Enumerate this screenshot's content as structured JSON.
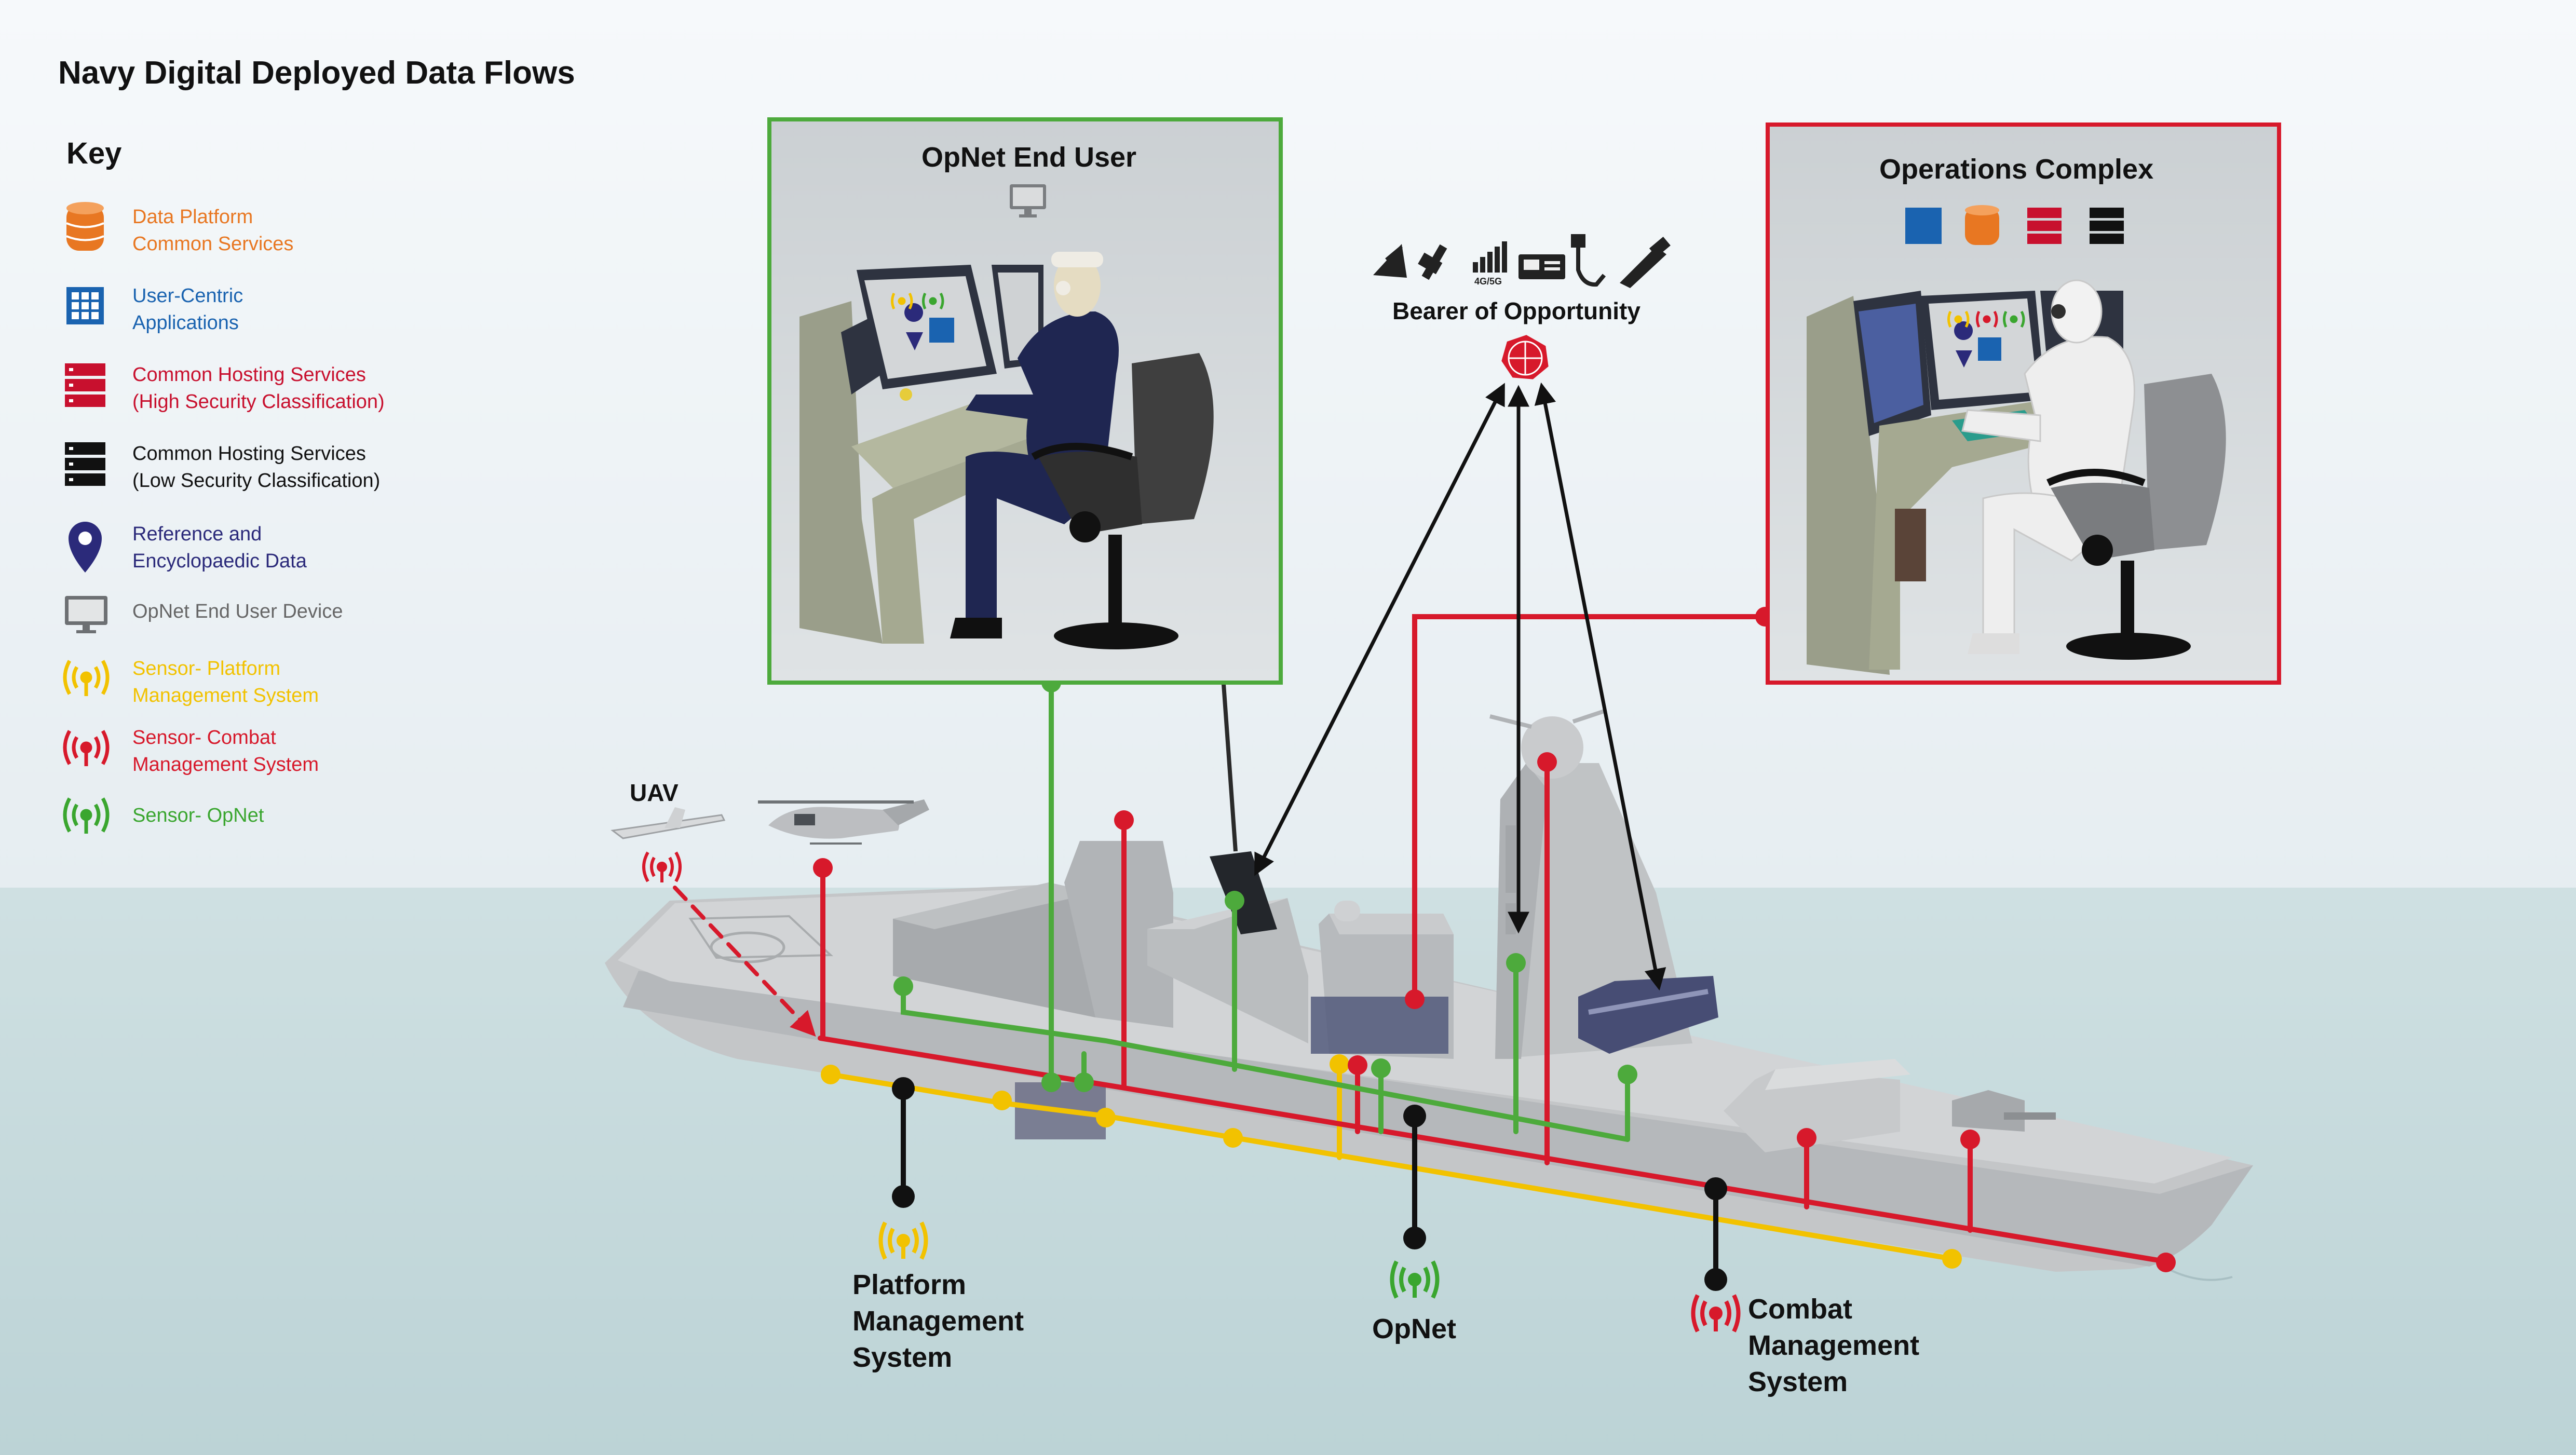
{
  "title": "Navy Digital Deployed Data Flows",
  "key": {
    "heading": "Key",
    "items": [
      {
        "icon": "database-icon",
        "line1": "Data Platform",
        "line2": "Common Services",
        "color": "#e87722"
      },
      {
        "icon": "app-grid-icon",
        "line1": "User-Centric",
        "line2": "Applications",
        "color": "#1a63b0"
      },
      {
        "icon": "server-stack-red-icon",
        "line1": "Common Hosting Services",
        "line2": "(High Security Classification)",
        "color": "#c8102e"
      },
      {
        "icon": "server-stack-black-icon",
        "line1": "Common Hosting Services",
        "line2": "(Low Security Classification)",
        "color": "#111111"
      },
      {
        "icon": "location-pin-icon",
        "line1": "Reference and",
        "line2": "Encyclopaedic Data",
        "color": "#2b2a7a"
      },
      {
        "icon": "monitor-icon",
        "line1": "OpNet End User Device",
        "line2": "",
        "color": "#666666"
      },
      {
        "icon": "sensor-yellow-icon",
        "line1": "Sensor- Platform",
        "line2": "Management System",
        "color": "#f2c200"
      },
      {
        "icon": "sensor-red-icon",
        "line1": "Sensor- Combat",
        "line2": "Management System",
        "color": "#d7192b"
      },
      {
        "icon": "sensor-green-icon",
        "line1": "Sensor- OpNet",
        "line2": "",
        "color": "#3aa62f"
      }
    ]
  },
  "panels": {
    "opnet_end_user": {
      "title": "OpNet End User",
      "border": "#4daa3c"
    },
    "operations_complex": {
      "title": "Operations Complex",
      "border": "#d7192b"
    }
  },
  "bearer": {
    "label": "Bearer of Opportunity",
    "icons": [
      "satellite-dish-icon",
      "satellite-icon",
      "cellular-signal-icon",
      "radio-icon",
      "cable-plug-icon",
      "antenna-mast-icon"
    ],
    "signal_text": "4G/5G"
  },
  "labels": {
    "uav": "UAV",
    "pms_line1": "Platform",
    "pms_line2": "Management",
    "pms_line3": "System",
    "opnet": "OpNet",
    "cms_line1": "Combat",
    "cms_line2": "Management",
    "cms_line3": "System"
  },
  "colors": {
    "pms": "#f2c200",
    "cms": "#d7192b",
    "opnet": "#4daa3c",
    "black": "#111111",
    "sea": "#c9dde0",
    "sky": "#eef3f6"
  }
}
